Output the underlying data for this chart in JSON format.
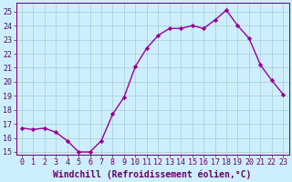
{
  "hours": [
    0,
    1,
    2,
    3,
    4,
    5,
    6,
    7,
    8,
    9,
    10,
    11,
    12,
    13,
    14,
    15,
    16,
    17,
    18,
    19,
    20,
    21,
    22,
    23
  ],
  "values": [
    16.7,
    16.6,
    16.7,
    16.4,
    15.8,
    15.0,
    15.0,
    15.8,
    17.7,
    18.9,
    21.1,
    22.4,
    23.3,
    23.8,
    23.8,
    24.0,
    23.8,
    24.4,
    25.1,
    24.0,
    23.1,
    21.2,
    20.1,
    19.1
  ],
  "line_color": "#990099",
  "marker": "D",
  "marker_size": 2.2,
  "bg_color": "#cceeff",
  "grid_color": "#aacccc",
  "xlabel": "Windchill (Refroidissement éolien,°C)",
  "ylim": [
    14.8,
    25.6
  ],
  "xlim": [
    -0.5,
    23.5
  ],
  "yticks": [
    15,
    16,
    17,
    18,
    19,
    20,
    21,
    22,
    23,
    24,
    25
  ],
  "xticks": [
    0,
    1,
    2,
    3,
    4,
    5,
    6,
    7,
    8,
    9,
    10,
    11,
    12,
    13,
    14,
    15,
    16,
    17,
    18,
    19,
    20,
    21,
    22,
    23
  ],
  "tick_fontsize": 6.0,
  "xlabel_fontsize": 7.0,
  "axis_color": "#660066",
  "spine_color": "#660066",
  "linewidth": 1.0
}
